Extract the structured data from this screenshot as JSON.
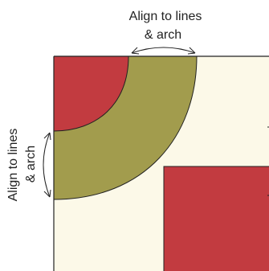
{
  "labels": {
    "top_line1": "Align to lines",
    "top_line2": "& arch",
    "side_line1": "Align to lines",
    "side_line2": "& arch"
  },
  "colors": {
    "background_fabric": "#fcf9e8",
    "red_fabric": "#c23b40",
    "olive_arch": "#a29c4d",
    "outline": "#222222"
  }
}
